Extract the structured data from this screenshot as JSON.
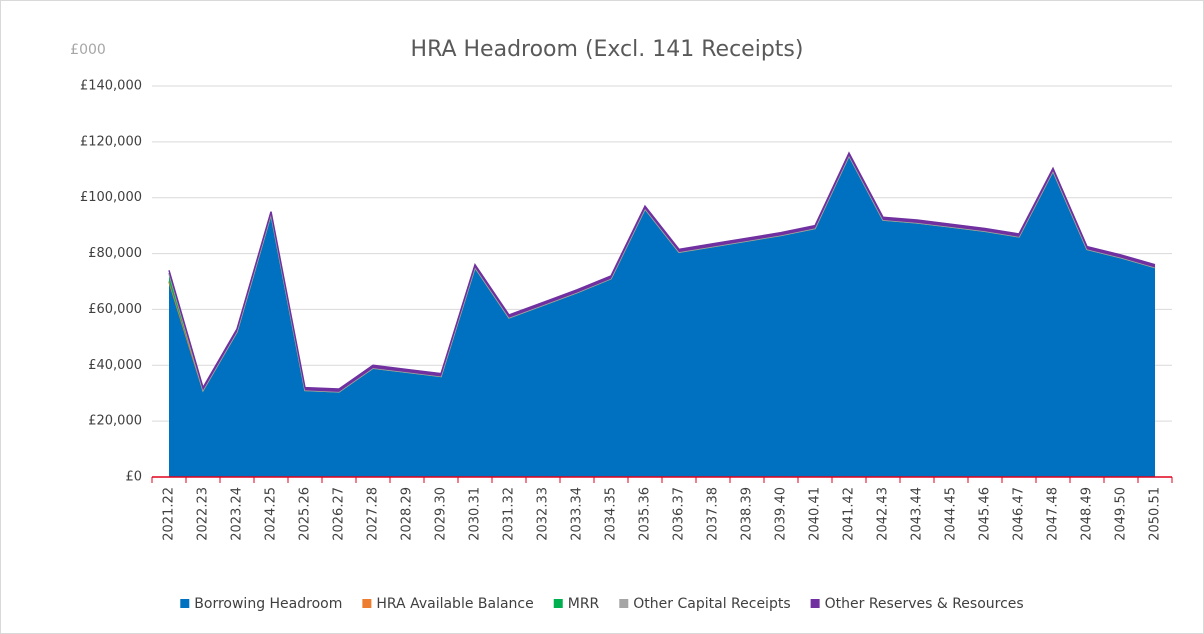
{
  "chart_data": {
    "type": "stacked_area",
    "title": "HRA Headroom (Excl. 141 Receipts)",
    "y_unit_label": "£000",
    "categories": [
      "2021.22",
      "2022.23",
      "2023.24",
      "2024.25",
      "2025.26",
      "2026.27",
      "2027.28",
      "2028.29",
      "2029.30",
      "2030.31",
      "2031.32",
      "2032.33",
      "2033.34",
      "2034.35",
      "2035.36",
      "2036.37",
      "2037.38",
      "2038.39",
      "2039.40",
      "2040.41",
      "2041.42",
      "2042.43",
      "2043.44",
      "2044.45",
      "2045.46",
      "2046.47",
      "2047.48",
      "2048.49",
      "2049.50",
      "2050.51"
    ],
    "series": [
      {
        "name": "Borrowing Headroom",
        "color": "#0070c0",
        "values": [
          70000,
          31000,
          52000,
          94000,
          31000,
          30500,
          39000,
          37500,
          36000,
          75000,
          57000,
          61500,
          66000,
          71000,
          96000,
          80500,
          82500,
          84500,
          86500,
          89000,
          115000,
          92000,
          91000,
          89500,
          88000,
          86000,
          109500,
          81500,
          78500,
          75000
        ]
      },
      {
        "name": "HRA Available Balance",
        "color": "#ed7d31",
        "values": [
          0,
          0,
          0,
          0,
          0,
          0,
          0,
          0,
          0,
          0,
          0,
          0,
          0,
          0,
          0,
          0,
          0,
          0,
          0,
          0,
          0,
          0,
          0,
          0,
          0,
          0,
          0,
          0,
          0,
          0
        ]
      },
      {
        "name": "MRR",
        "color": "#00b050",
        "values": [
          3000,
          0,
          0,
          0,
          0,
          0,
          0,
          0,
          0,
          0,
          0,
          0,
          0,
          0,
          0,
          0,
          0,
          0,
          0,
          0,
          0,
          0,
          0,
          0,
          0,
          0,
          0,
          0,
          0,
          0
        ]
      },
      {
        "name": "Other Capital Receipts",
        "color": "#a5a5a5",
        "values": [
          0,
          0,
          0,
          0,
          0,
          0,
          0,
          0,
          0,
          0,
          0,
          0,
          0,
          0,
          0,
          0,
          0,
          0,
          0,
          0,
          0,
          0,
          0,
          0,
          0,
          0,
          0,
          0,
          0,
          0
        ]
      },
      {
        "name": "Other Reserves & Resources",
        "color": "#7030a0",
        "values": [
          1000,
          1000,
          1000,
          1000,
          1000,
          1000,
          1000,
          1000,
          1000,
          1000,
          1000,
          1000,
          1000,
          1000,
          1000,
          1000,
          1000,
          1000,
          1000,
          1000,
          1000,
          1000,
          1000,
          1000,
          1000,
          1000,
          1000,
          1000,
          1000,
          1000
        ]
      }
    ],
    "ylim": [
      0,
      140000
    ],
    "yticks": [
      {
        "value": 0,
        "label": "£0"
      },
      {
        "value": 20000,
        "label": "£20,000"
      },
      {
        "value": 40000,
        "label": "£40,000"
      },
      {
        "value": 60000,
        "label": "£60,000"
      },
      {
        "value": 80000,
        "label": "£80,000"
      },
      {
        "value": 100000,
        "label": "£100,000"
      },
      {
        "value": 120000,
        "label": "£120,000"
      },
      {
        "value": 140000,
        "label": "£140,000"
      }
    ],
    "grid": true,
    "legend": "bottom"
  }
}
